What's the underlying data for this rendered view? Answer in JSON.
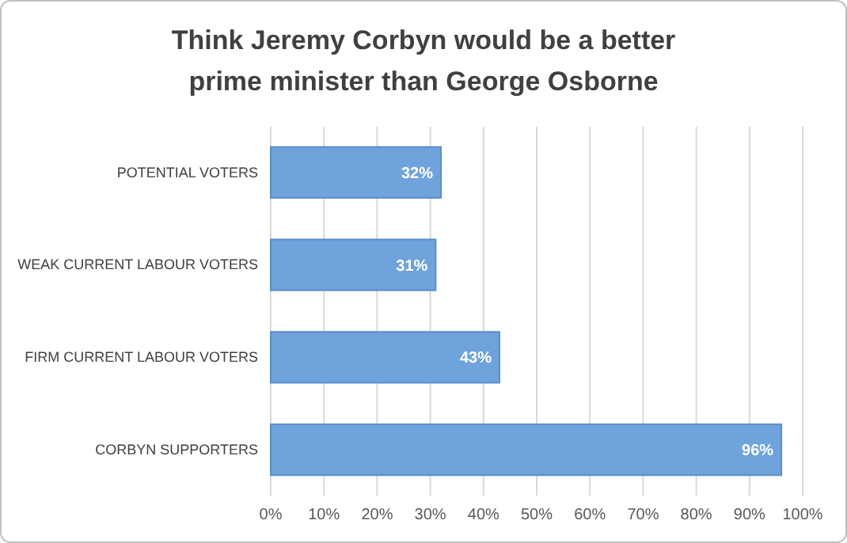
{
  "chart_data": {
    "type": "bar",
    "orientation": "horizontal",
    "title": "Think Jeremy Corbyn would be a better prime minister than George Osborne",
    "categories": [
      "POTENTIAL VOTERS",
      "WEAK CURRENT LABOUR VOTERS",
      "FIRM CURRENT LABOUR VOTERS",
      "CORBYN SUPPORTERS"
    ],
    "values": [
      32,
      31,
      43,
      96
    ],
    "value_labels": [
      "32%",
      "31%",
      "43%",
      "96%"
    ],
    "color": "#6fa3dc",
    "grid": "x",
    "xlim": [
      0,
      100
    ],
    "xticks": [
      {
        "value": 0,
        "label": "0%"
      },
      {
        "value": 10,
        "label": "10%"
      },
      {
        "value": 20,
        "label": "20%"
      },
      {
        "value": 30,
        "label": "30%"
      },
      {
        "value": 40,
        "label": "40%"
      },
      {
        "value": 50,
        "label": "50%"
      },
      {
        "value": 60,
        "label": "60%"
      },
      {
        "value": 70,
        "label": "70%"
      },
      {
        "value": 80,
        "label": "80%"
      },
      {
        "value": 90,
        "label": "90%"
      },
      {
        "value": 100,
        "label": "100%"
      }
    ]
  }
}
